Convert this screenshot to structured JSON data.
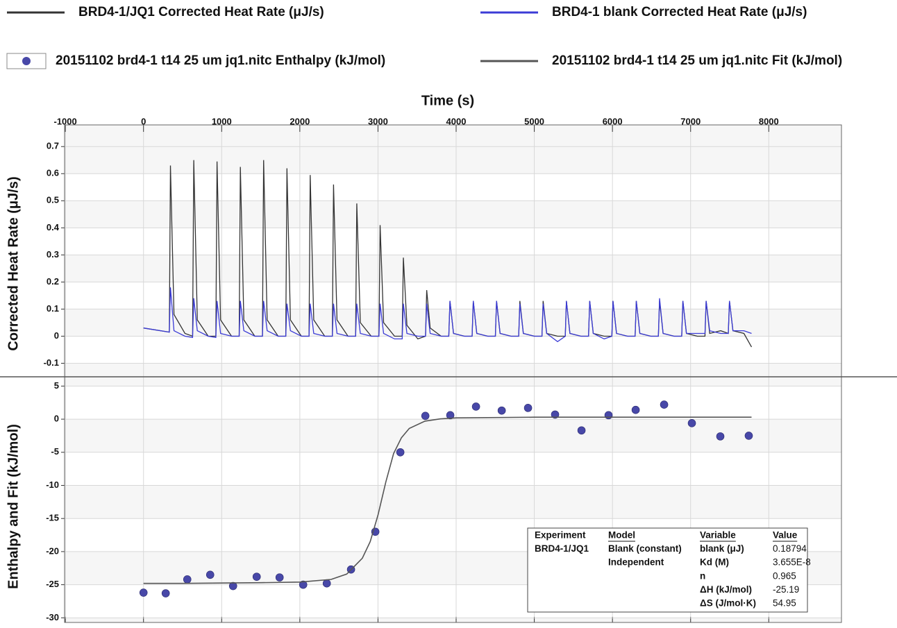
{
  "chart_data": [
    {
      "type": "line",
      "xlabel": "Time (s)",
      "ylabel": "Corrected Heat Rate (μJ/s)",
      "xlim": [
        -1010,
        8930
      ],
      "xticks": [
        -1000,
        0,
        1000,
        2000,
        3000,
        4000,
        5000,
        6000,
        7000,
        8000
      ],
      "ylim": [
        -0.15,
        0.78
      ],
      "yticks": [
        -0.1,
        0,
        0.1,
        0.2,
        0.3,
        0.4,
        0.5,
        0.6,
        0.7
      ],
      "grid": true,
      "x": [
        0,
        330,
        345,
        390,
        530,
        628,
        643,
        688,
        828,
        926,
        941,
        986,
        1126,
        1224,
        1239,
        1284,
        1424,
        1522,
        1537,
        1582,
        1722,
        1820,
        1835,
        1880,
        2020,
        2118,
        2133,
        2178,
        2318,
        2416,
        2431,
        2476,
        2616,
        2714,
        2729,
        2774,
        2914,
        3012,
        3027,
        3072,
        3212,
        3310,
        3325,
        3370,
        3510,
        3608,
        3623,
        3668,
        3808,
        3906,
        3921,
        3966,
        4106,
        4204,
        4219,
        4264,
        4404,
        4502,
        4517,
        4562,
        4702,
        4800,
        4815,
        4860,
        5000,
        5098,
        5113,
        5158,
        5298,
        5396,
        5411,
        5456,
        5596,
        5694,
        5709,
        5754,
        5894,
        5992,
        6007,
        6052,
        6192,
        6290,
        6305,
        6350,
        6490,
        6588,
        6603,
        6648,
        6788,
        6886,
        6901,
        6946,
        7086,
        7184,
        7199,
        7244,
        7384,
        7482,
        7497,
        7542,
        7682,
        7780
      ],
      "series": [
        {
          "name": "BRD4-1/JQ1 Corrected Heat Rate (μJ/s)",
          "color": "#333333",
          "values": [
            0.03,
            0.015,
            0.63,
            0.08,
            0.01,
            0,
            0.65,
            0.06,
            0,
            0,
            0.645,
            0.06,
            0,
            0,
            0.625,
            0.06,
            0,
            0,
            0.65,
            0.06,
            0,
            0,
            0.62,
            0.06,
            0,
            0,
            0.595,
            0.06,
            0,
            0,
            0.56,
            0.06,
            0,
            0,
            0.49,
            0.05,
            0,
            0,
            0.41,
            0.05,
            0,
            0,
            0.29,
            0.04,
            -0.01,
            0,
            0.17,
            0.03,
            0,
            0,
            0.13,
            0.01,
            0,
            0,
            0.13,
            0.01,
            0,
            0,
            0.13,
            0.01,
            0,
            0,
            0.13,
            0.01,
            0,
            0,
            0.13,
            0.01,
            0,
            0,
            0.13,
            0.01,
            0,
            0,
            0.13,
            0.01,
            0,
            0,
            0.13,
            0.01,
            0,
            0,
            0.13,
            0.01,
            0,
            0,
            0.13,
            0.01,
            0,
            0,
            0.13,
            0.01,
            0,
            0,
            0.13,
            0.01,
            0.02,
            0.01,
            0.13,
            0.02,
            0.01,
            -0.04
          ]
        },
        {
          "name": "BRD4-1 blank Corrected Heat Rate (μJ/s)",
          "color": "#3b3bd6",
          "values": [
            0.03,
            0.015,
            0.18,
            0.02,
            0,
            -0.005,
            0.14,
            0.02,
            0,
            -0.005,
            0.13,
            0.01,
            0,
            0,
            0.13,
            0.02,
            0,
            0,
            0.13,
            0.02,
            0,
            0,
            0.12,
            0.02,
            0,
            0,
            0.12,
            0.01,
            0,
            0,
            0.12,
            0.01,
            0,
            0,
            0.12,
            0.01,
            0,
            0,
            0.12,
            0.01,
            -0.01,
            -0.01,
            0.12,
            0.01,
            0,
            0,
            0.12,
            0.01,
            0,
            0,
            0.13,
            0.01,
            0,
            0,
            0.13,
            0.01,
            0,
            0,
            0.13,
            0.01,
            0,
            0,
            0.12,
            0.01,
            0,
            0,
            0.12,
            0.01,
            -0.02,
            0,
            0.13,
            0.01,
            0,
            0,
            0.13,
            0.01,
            -0.01,
            0,
            0.13,
            0.01,
            0,
            0,
            0.13,
            0.01,
            0,
            0,
            0.14,
            0.01,
            0,
            0,
            0.13,
            0.01,
            0.01,
            0.01,
            0.13,
            0.02,
            0.01,
            0.01,
            0.13,
            0.02,
            0.02,
            0.01
          ]
        }
      ]
    },
    {
      "type": "scatter",
      "ylabel": "Enthalpy and Fit (kJ/mol)",
      "xlim": [
        -1010,
        8930
      ],
      "ylim": [
        -30.7,
        6.4
      ],
      "yticks": [
        -30,
        -25,
        -20,
        -15,
        -10,
        -5,
        0,
        5
      ],
      "grid": true,
      "series": [
        {
          "name": "20151102 brd4-1 t14 25 um jq1.nitc Enthalpy (kJ/mol)",
          "type": "scatter",
          "color": "#4848a8",
          "x": [
            0,
            284,
            560,
            853,
            1146,
            1448,
            1741,
            2043,
            2345,
            2655,
            2966,
            3286,
            3606,
            3925,
            4254,
            4583,
            4920,
            5266,
            5604,
            5950,
            6297,
            6661,
            7016,
            7380,
            7744
          ],
          "values": [
            -26.2,
            -26.3,
            -24.2,
            -23.5,
            -25.2,
            -23.8,
            -23.9,
            -25,
            -24.8,
            -22.7,
            -17,
            -5,
            0.5,
            0.6,
            1.9,
            1.3,
            1.7,
            0.7,
            -1.7,
            0.6,
            1.4,
            2.2,
            -0.6,
            -2.6,
            -2.5
          ]
        },
        {
          "name": "20151102 brd4-1 t14 25 um jq1.nitc Fit (kJ/mol)",
          "type": "line",
          "color": "#555555",
          "x": [
            0,
            500,
            1000,
            1500,
            2000,
            2400,
            2600,
            2800,
            2900,
            3000,
            3100,
            3200,
            3300,
            3400,
            3600,
            3800,
            4000,
            5000,
            6000,
            7000,
            7780
          ],
          "values": [
            -24.8,
            -24.8,
            -24.75,
            -24.7,
            -24.6,
            -24.2,
            -23.4,
            -21,
            -18.5,
            -14.5,
            -9.5,
            -5.2,
            -2.8,
            -1.4,
            -0.3,
            0.05,
            0.2,
            0.3,
            0.3,
            0.3,
            0.3
          ]
        }
      ],
      "table": {
        "headers": [
          "Experiment",
          "Model",
          "Variable",
          "Value"
        ],
        "columns": [
          [
            "BRD4-1/JQ1"
          ],
          [
            "Blank (constant)",
            "Independent"
          ],
          [
            "blank (μJ)",
            "Kd (M)",
            "n",
            "ΔH (kJ/mol)",
            "ΔS (J/mol·K)"
          ],
          [
            "0.18794",
            "3.655E-8",
            "0.965",
            "-25.19",
            "54.95"
          ]
        ]
      }
    }
  ]
}
